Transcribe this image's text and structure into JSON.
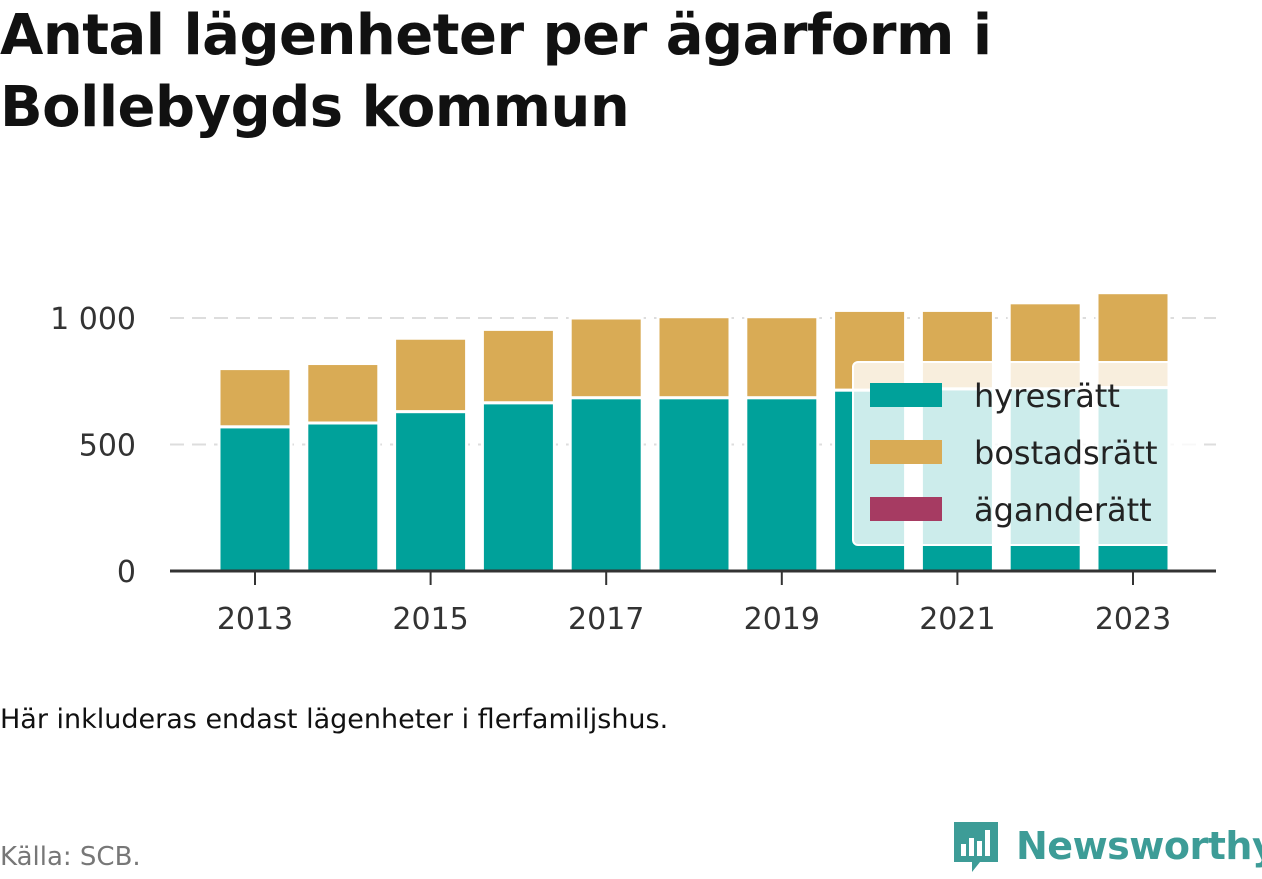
{
  "title": "Antal lägenheter per ägarform i Bollebygds kommun",
  "note": "Här inkluderas endast lägenheter i flerfamiljshus.",
  "source": "Källa: SCB.",
  "brand": {
    "name": "Newsworthy",
    "icon": "newsworthy-logo-icon",
    "color": "#3d9c97"
  },
  "chart_data": {
    "type": "bar",
    "stacked": true,
    "title": "Antal lägenheter per ägarform i Bollebygds kommun",
    "xlabel": "",
    "ylabel": "",
    "categories": [
      "2013",
      "2014",
      "2015",
      "2016",
      "2017",
      "2018",
      "2019",
      "2020",
      "2021",
      "2022",
      "2023"
    ],
    "x_tick_labels": [
      "2013",
      "2015",
      "2017",
      "2019",
      "2021",
      "2023"
    ],
    "y_ticks": [
      0,
      500,
      1000
    ],
    "y_tick_labels": [
      "0",
      "500",
      "1 000"
    ],
    "ylim": [
      0,
      1150
    ],
    "grid": true,
    "legend_position": "inside-right",
    "series": [
      {
        "name": "hyresrätt",
        "color": "#00a19a",
        "values": [
          570,
          585,
          630,
          665,
          685,
          685,
          685,
          715,
          720,
          720,
          725
        ]
      },
      {
        "name": "bostadsrätt",
        "color": "#d9ab55",
        "values": [
          230,
          235,
          290,
          290,
          315,
          320,
          320,
          315,
          310,
          340,
          375
        ]
      },
      {
        "name": "äganderätt",
        "color": "#a63b62",
        "values": [
          0,
          0,
          0,
          0,
          0,
          0,
          0,
          0,
          0,
          0,
          0
        ]
      }
    ]
  }
}
